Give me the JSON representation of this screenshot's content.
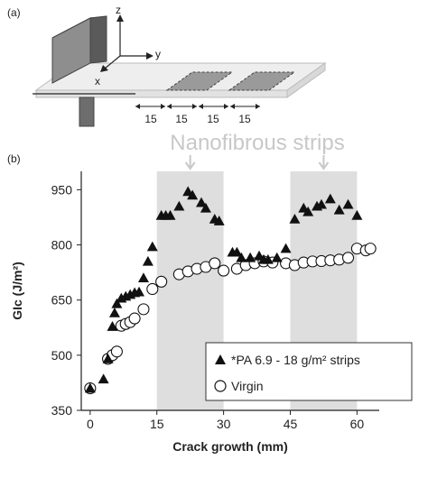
{
  "panel_a": {
    "label": "(a)",
    "axes": {
      "z": "z",
      "y": "y",
      "x": "x"
    },
    "dimensions": [
      "15",
      "15",
      "15",
      "15"
    ]
  },
  "panel_b": {
    "label": "(b)",
    "band_label": "Nanofibrous strips"
  },
  "chart_data": {
    "type": "scatter",
    "xlabel": "Crack growth (mm)",
    "ylabel": "GIc (J/m²)",
    "xlim": [
      -2,
      65
    ],
    "ylim": [
      350,
      1000
    ],
    "xticks": [
      "0",
      "15",
      "30",
      "45",
      "60"
    ],
    "yticks": [
      "350",
      "500",
      "650",
      "800",
      "950"
    ],
    "grid": false,
    "legend_position": "bottom-right",
    "shaded_regions": [
      {
        "x": [
          15,
          30
        ]
      },
      {
        "x": [
          45,
          60
        ]
      }
    ],
    "series": [
      {
        "name": "*PA 6.9 - 18 g/m² strips",
        "marker": "filled-triangle",
        "color": "#111111",
        "points": [
          [
            0,
            410
          ],
          [
            3,
            435
          ],
          [
            4,
            490
          ],
          [
            5,
            578
          ],
          [
            5.5,
            615
          ],
          [
            6,
            640
          ],
          [
            7,
            655
          ],
          [
            8,
            660
          ],
          [
            9,
            665
          ],
          [
            10,
            670
          ],
          [
            11,
            672
          ],
          [
            12,
            710
          ],
          [
            13,
            755
          ],
          [
            14,
            795
          ],
          [
            16,
            880
          ],
          [
            17,
            880
          ],
          [
            18,
            880
          ],
          [
            20,
            905
          ],
          [
            22,
            945
          ],
          [
            23,
            935
          ],
          [
            25,
            915
          ],
          [
            26,
            900
          ],
          [
            28,
            870
          ],
          [
            29,
            865
          ],
          [
            32,
            780
          ],
          [
            33,
            780
          ],
          [
            34,
            765
          ],
          [
            36,
            765
          ],
          [
            38,
            770
          ],
          [
            39,
            760
          ],
          [
            40,
            760
          ],
          [
            42,
            765
          ],
          [
            44,
            790
          ],
          [
            46,
            870
          ],
          [
            48,
            900
          ],
          [
            49,
            890
          ],
          [
            51,
            905
          ],
          [
            52,
            910
          ],
          [
            54,
            925
          ],
          [
            56,
            895
          ],
          [
            58,
            910
          ],
          [
            60,
            880
          ]
        ]
      },
      {
        "name": "Virgin",
        "marker": "open-circle",
        "color": "#111111",
        "points": [
          [
            0,
            410
          ],
          [
            4,
            490
          ],
          [
            5,
            500
          ],
          [
            6,
            510
          ],
          [
            7,
            580
          ],
          [
            8,
            585
          ],
          [
            9,
            590
          ],
          [
            10,
            600
          ],
          [
            12,
            625
          ],
          [
            14,
            680
          ],
          [
            16,
            700
          ],
          [
            20,
            720
          ],
          [
            22,
            728
          ],
          [
            24,
            735
          ],
          [
            26,
            740
          ],
          [
            28,
            750
          ],
          [
            30,
            730
          ],
          [
            33,
            735
          ],
          [
            35,
            745
          ],
          [
            37,
            750
          ],
          [
            39,
            755
          ],
          [
            41,
            752
          ],
          [
            44,
            750
          ],
          [
            46,
            745
          ],
          [
            48,
            752
          ],
          [
            50,
            755
          ],
          [
            52,
            756
          ],
          [
            54,
            758
          ],
          [
            56,
            760
          ],
          [
            58,
            765
          ],
          [
            60,
            790
          ],
          [
            62,
            785
          ],
          [
            63,
            790
          ]
        ]
      }
    ]
  }
}
